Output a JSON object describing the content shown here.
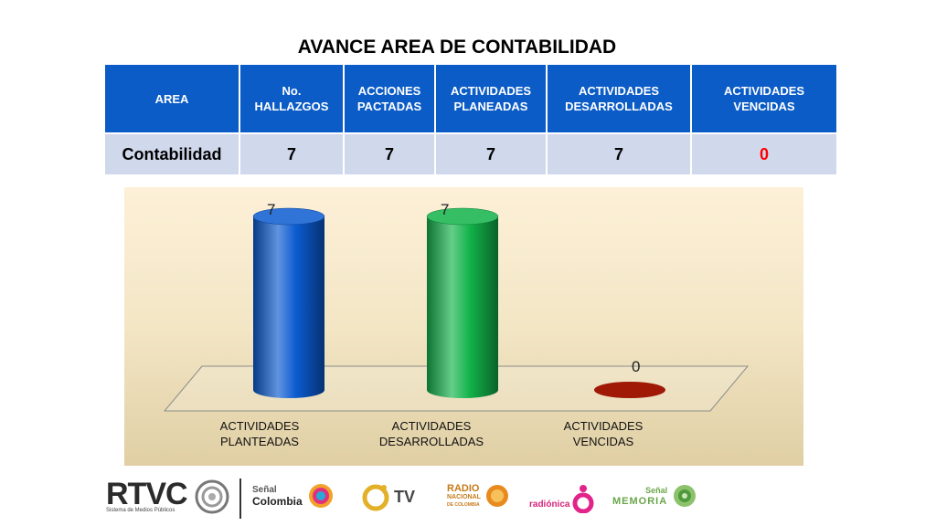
{
  "title": "AVANCE AREA DE CONTABILIDAD",
  "table": {
    "headers": [
      [
        "AREA"
      ],
      [
        "No.",
        "HALLAZGOS"
      ],
      [
        "ACCIONES",
        "PACTADAS"
      ],
      [
        "ACTIVIDADES",
        "PLANEADAS"
      ],
      [
        "ACTIVIDADES",
        "DESARROLLADAS"
      ],
      [
        "ACTIVIDADES",
        "VENCIDAS"
      ]
    ],
    "row": [
      "Contabilidad",
      "7",
      "7",
      "7",
      "7",
      "0"
    ]
  },
  "chart_data": {
    "type": "bar",
    "style": "3d-cylinder",
    "categories": [
      [
        "ACTIVIDADES",
        "PLANTEADAS"
      ],
      [
        "ACTIVIDADES",
        "DESARROLLADAS"
      ],
      [
        "ACTIVIDADES",
        "VENCIDAS"
      ]
    ],
    "values": [
      7,
      7,
      0
    ],
    "colors": [
      "#0b5bd0",
      "#12b34a",
      "#a01806"
    ],
    "ylim": [
      0,
      7
    ],
    "data_labels": true,
    "grid": false,
    "legend": "none"
  },
  "footer": {
    "rtvc": "RTVC",
    "rtvc_sub": "Sistema de Medios Públicos",
    "senal_colombia": [
      "Señal",
      "Colombia"
    ],
    "canal_tv": "TV",
    "radio_nacional": [
      "RADIO",
      "NACIONAL",
      "DE COLOMBIA"
    ],
    "radionica": "radiónica",
    "senal_memoria": [
      "Señal",
      "MEMORIA"
    ]
  }
}
